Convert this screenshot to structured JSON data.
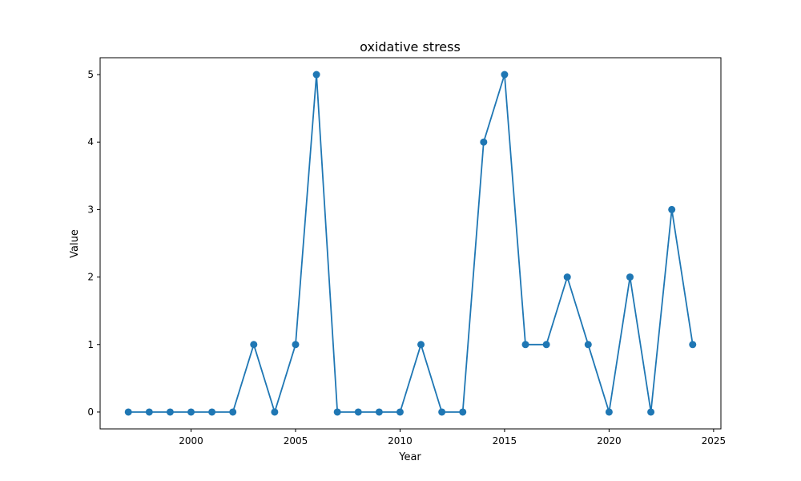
{
  "chart_data": {
    "type": "line",
    "title": "oxidative stress",
    "xlabel": "Year",
    "ylabel": "Value",
    "grid": false,
    "legend": false,
    "color": "#1f77b4",
    "xlim": [
      1995.65,
      2025.35
    ],
    "ylim": [
      -0.25,
      5.25
    ],
    "xticks": [
      2000,
      2005,
      2010,
      2015,
      2020,
      2025
    ],
    "yticks": [
      0,
      1,
      2,
      3,
      4,
      5
    ],
    "series": [
      {
        "x": [
          1997,
          1998,
          1999,
          2000,
          2001,
          2002,
          2003,
          2004,
          2005,
          2006,
          2007,
          2008,
          2009,
          2010,
          2011,
          2012,
          2013,
          2014,
          2015,
          2016,
          2017,
          2018,
          2019,
          2020,
          2021,
          2022,
          2023,
          2024
        ],
        "values": [
          0,
          0,
          0,
          0,
          0,
          0,
          1,
          0,
          1,
          5,
          0,
          0,
          0,
          0,
          1,
          0,
          0,
          4,
          5,
          1,
          1,
          2,
          1,
          0,
          2,
          0,
          3,
          1
        ]
      }
    ]
  }
}
